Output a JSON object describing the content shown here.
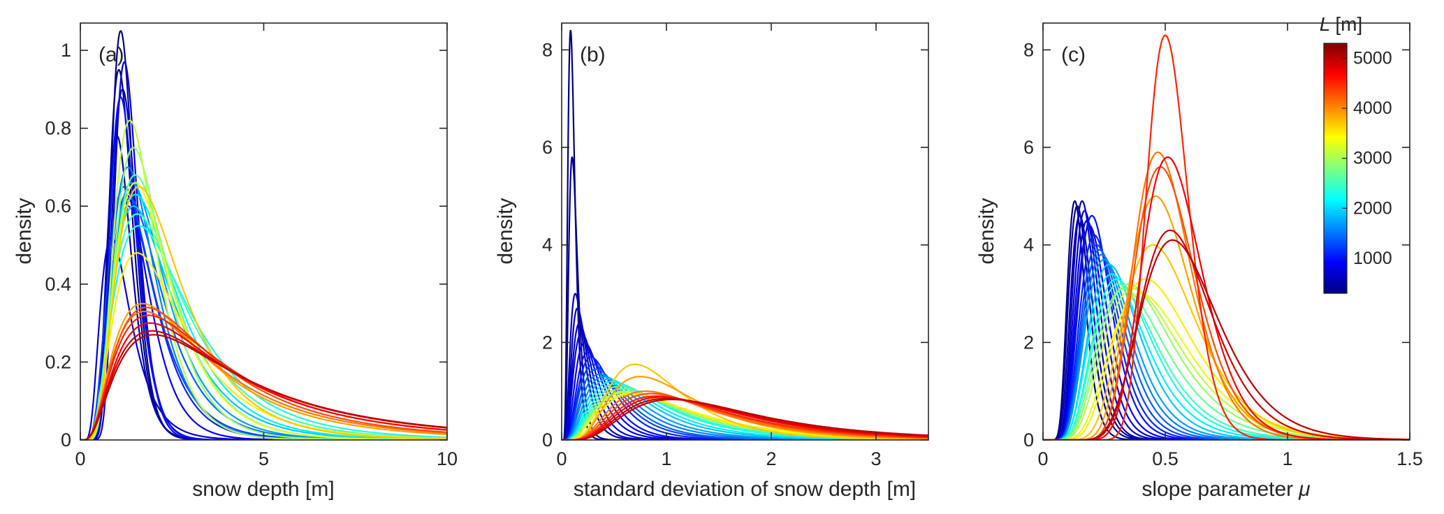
{
  "figure": {
    "background": "#ffffff",
    "axis_color": "#262626",
    "curve_stroke_width": 2.2
  },
  "chart_data": {
    "type": "line",
    "description": "Three-panel MATLAB-style figure of kernel density estimates for many simulations, colored by length scale L (jet colormap): (a) snow depth, (b) standard deviation of snow depth, (c) slope parameter mu.",
    "curve_param_format": "[mode_x, peak_density, lognormal_sigma]",
    "colormap": {
      "L_range": [
        300,
        5300
      ],
      "stops": [
        [
          0.0,
          "#000080"
        ],
        [
          0.125,
          "#0000ff"
        ],
        [
          0.375,
          "#00ffff"
        ],
        [
          0.625,
          "#ffff00"
        ],
        [
          0.875,
          "#ff0000"
        ],
        [
          1.0,
          "#800000"
        ]
      ]
    },
    "panels": [
      {
        "id": "a",
        "panel_label": "(a)",
        "xlabel_main": "snow depth [m]",
        "xlabel_italic": "",
        "ylabel": "density",
        "xlim": [
          0,
          10
        ],
        "ylim": [
          0,
          1.07
        ],
        "xticks": {
          "values": [
            0,
            5,
            10
          ],
          "labels": [
            "0",
            "5",
            "10"
          ]
        },
        "yticks": {
          "values": [
            0,
            0.2,
            0.4,
            0.6,
            0.8,
            1
          ],
          "labels": [
            "0",
            "0.2",
            "0.4",
            "0.6",
            "0.8",
            "1"
          ]
        }
      },
      {
        "id": "b",
        "panel_label": "(b)",
        "xlabel_main": "standard deviation of snow depth [m]",
        "xlabel_italic": "",
        "ylabel": "density",
        "xlim": [
          0,
          3.5
        ],
        "ylim": [
          0,
          8.55
        ],
        "xticks": {
          "values": [
            0,
            1,
            2,
            3
          ],
          "labels": [
            "0",
            "1",
            "2",
            "3"
          ]
        },
        "yticks": {
          "values": [
            0,
            2,
            4,
            6,
            8
          ],
          "labels": [
            "0",
            "2",
            "4",
            "6",
            "8"
          ]
        }
      },
      {
        "id": "c",
        "panel_label": "(c)",
        "xlabel_main": "slope parameter",
        "xlabel_italic": "μ",
        "ylabel": "density",
        "xlim": [
          0,
          1.5
        ],
        "ylim": [
          0,
          8.55
        ],
        "xticks": {
          "values": [
            0,
            0.5,
            1,
            1.5
          ],
          "labels": [
            "0",
            "0.5",
            "1",
            "1.5"
          ]
        },
        "yticks": {
          "values": [
            0,
            2,
            4,
            6,
            8
          ],
          "labels": [
            "0",
            "2",
            "4",
            "6",
            "8"
          ]
        },
        "colorbar": {
          "title_italic": "L",
          "title_rest": "[m]",
          "min": 300,
          "max": 5300,
          "tick_values": [
            1000,
            2000,
            3000,
            4000,
            5000
          ],
          "tick_labels": [
            "1000",
            "2000",
            "3000",
            "4000",
            "5000"
          ]
        }
      }
    ],
    "curves": [
      {
        "L": 300,
        "a": [
          1.05,
          0.95,
          0.3
        ],
        "b": [
          0.085,
          8.4,
          0.4
        ],
        "c": [
          0.13,
          4.9,
          0.28
        ]
      },
      {
        "L": 400,
        "a": [
          1.1,
          1.05,
          0.28
        ],
        "b": [
          0.1,
          5.8,
          0.42
        ],
        "c": [
          0.14,
          4.8,
          0.3
        ]
      },
      {
        "L": 500,
        "a": [
          1.0,
          0.78,
          0.33
        ],
        "b": [
          0.13,
          3.0,
          0.5
        ],
        "c": [
          0.15,
          4.6,
          0.3
        ]
      },
      {
        "L": 600,
        "a": [
          1.15,
          0.9,
          0.3
        ],
        "b": [
          0.15,
          2.7,
          0.5
        ],
        "c": [
          0.16,
          4.9,
          0.29
        ]
      },
      {
        "L": 700,
        "a": [
          0.85,
          0.52,
          0.48
        ],
        "b": [
          0.17,
          2.4,
          0.52
        ],
        "c": [
          0.17,
          4.7,
          0.3
        ]
      },
      {
        "L": 800,
        "a": [
          1.2,
          0.97,
          0.27
        ],
        "b": [
          0.19,
          2.2,
          0.55
        ],
        "c": [
          0.18,
          4.5,
          0.31
        ]
      },
      {
        "L": 900,
        "a": [
          1.25,
          0.63,
          0.4
        ],
        "b": [
          0.22,
          2.0,
          0.55
        ],
        "c": [
          0.19,
          4.4,
          0.32
        ]
      },
      {
        "L": 1000,
        "a": [
          1.1,
          0.88,
          0.32
        ],
        "b": [
          0.25,
          1.8,
          0.55
        ],
        "c": [
          0.2,
          4.6,
          0.33
        ]
      },
      {
        "L": 1100,
        "a": [
          1.3,
          0.6,
          0.45
        ],
        "b": [
          0.28,
          1.7,
          0.57
        ],
        "c": [
          0.21,
          4.2,
          0.34
        ]
      },
      {
        "L": 1250,
        "a": [
          1.2,
          0.65,
          0.5
        ],
        "b": [
          0.3,
          1.55,
          0.6
        ],
        "c": [
          0.22,
          4.0,
          0.35
        ]
      },
      {
        "L": 1400,
        "a": [
          1.35,
          0.62,
          0.5
        ],
        "b": [
          0.33,
          1.45,
          0.6
        ],
        "c": [
          0.23,
          3.9,
          0.36
        ]
      },
      {
        "L": 1550,
        "a": [
          1.3,
          0.7,
          0.45
        ],
        "b": [
          0.36,
          1.35,
          0.62
        ],
        "c": [
          0.24,
          3.8,
          0.37
        ]
      },
      {
        "L": 1700,
        "a": [
          1.4,
          0.66,
          0.5
        ],
        "b": [
          0.4,
          1.3,
          0.62
        ],
        "c": [
          0.25,
          3.7,
          0.38
        ]
      },
      {
        "L": 1900,
        "a": [
          1.45,
          0.6,
          0.55
        ],
        "b": [
          0.44,
          1.25,
          0.63
        ],
        "c": [
          0.27,
          3.6,
          0.38
        ]
      },
      {
        "L": 2100,
        "a": [
          1.5,
          0.63,
          0.55
        ],
        "b": [
          0.48,
          1.2,
          0.63
        ],
        "c": [
          0.28,
          3.4,
          0.4
        ]
      },
      {
        "L": 2300,
        "a": [
          1.6,
          0.55,
          0.62
        ],
        "b": [
          0.52,
          1.15,
          0.64
        ],
        "c": [
          0.3,
          3.3,
          0.4
        ]
      },
      {
        "L": 2500,
        "a": [
          1.55,
          0.58,
          0.6
        ],
        "b": [
          0.55,
          1.1,
          0.64
        ],
        "c": [
          0.31,
          3.2,
          0.41
        ]
      },
      {
        "L": 2700,
        "a": [
          1.5,
          0.68,
          0.5
        ],
        "b": [
          0.58,
          1.05,
          0.65
        ],
        "c": [
          0.33,
          3.1,
          0.42
        ]
      },
      {
        "L": 2900,
        "a": [
          1.45,
          0.75,
          0.45
        ],
        "b": [
          0.6,
          1.0,
          0.65
        ],
        "c": [
          0.35,
          3.2,
          0.42
        ]
      },
      {
        "L": 3100,
        "a": [
          1.35,
          0.82,
          0.42
        ],
        "b": [
          0.62,
          0.98,
          0.66
        ],
        "c": [
          0.37,
          3.1,
          0.42
        ]
      },
      {
        "L": 3300,
        "a": [
          1.5,
          0.66,
          0.5
        ],
        "b": [
          0.65,
          0.95,
          0.66
        ],
        "c": [
          0.4,
          3.0,
          0.4
        ]
      },
      {
        "L": 3500,
        "a": [
          1.55,
          0.48,
          0.6
        ],
        "b": [
          0.68,
          0.95,
          0.6
        ],
        "c": [
          0.42,
          3.3,
          0.38
        ]
      },
      {
        "L": 3700,
        "a": [
          1.6,
          0.65,
          0.55
        ],
        "b": [
          0.7,
          1.55,
          0.5
        ],
        "c": [
          0.45,
          4.0,
          0.33
        ]
      },
      {
        "L": 3900,
        "a": [
          1.7,
          0.35,
          0.7
        ],
        "b": [
          0.75,
          1.3,
          0.55
        ],
        "c": [
          0.46,
          5.0,
          0.28
        ]
      },
      {
        "L": 4100,
        "a": [
          1.75,
          0.33,
          0.72
        ],
        "b": [
          0.8,
          1.0,
          0.58
        ],
        "c": [
          0.47,
          5.9,
          0.25
        ]
      },
      {
        "L": 4300,
        "a": [
          1.8,
          0.34,
          0.72
        ],
        "b": [
          0.85,
          0.95,
          0.58
        ],
        "c": [
          0.48,
          5.6,
          0.26
        ]
      },
      {
        "L": 4500,
        "a": [
          1.85,
          0.32,
          0.75
        ],
        "b": [
          0.9,
          0.9,
          0.58
        ],
        "c": [
          0.5,
          8.3,
          0.17
        ]
      },
      {
        "L": 4700,
        "a": [
          1.9,
          0.3,
          0.75
        ],
        "b": [
          0.95,
          0.88,
          0.58
        ],
        "c": [
          0.51,
          5.8,
          0.24
        ]
      },
      {
        "L": 4900,
        "a": [
          1.95,
          0.28,
          0.78
        ],
        "b": [
          1.0,
          0.85,
          0.58
        ],
        "c": [
          0.52,
          4.3,
          0.28
        ]
      },
      {
        "L": 5000,
        "a": [
          2.0,
          0.27,
          0.78
        ],
        "b": [
          1.05,
          0.83,
          0.58
        ],
        "c": [
          0.53,
          4.1,
          0.3
        ]
      }
    ]
  }
}
